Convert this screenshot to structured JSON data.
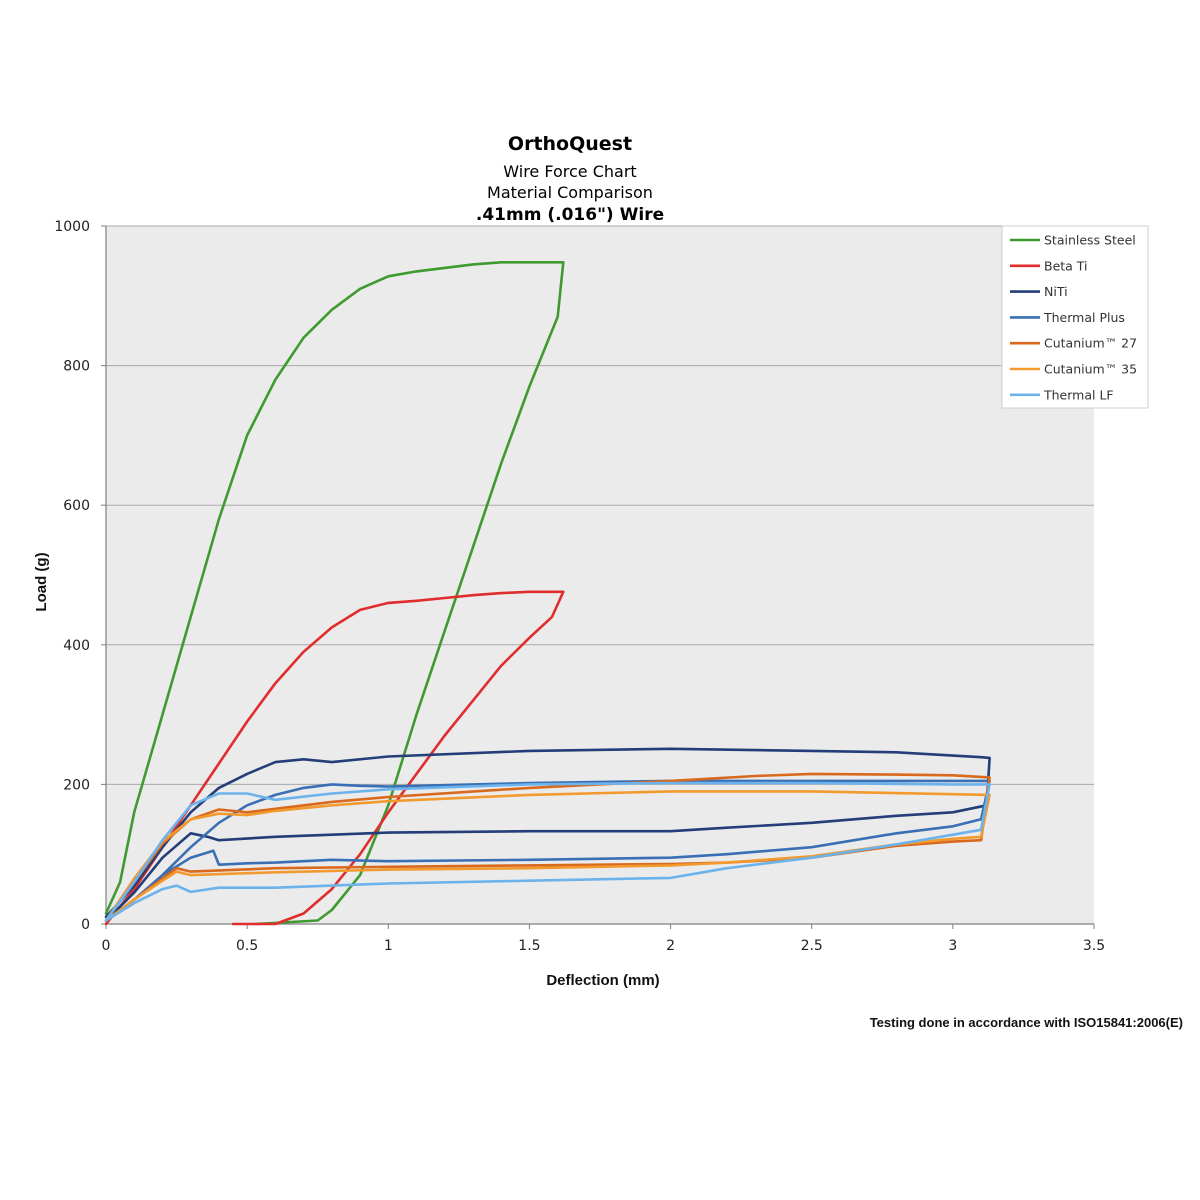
{
  "chart_data": {
    "type": "line",
    "title": "OrthoQuest",
    "subtitle_lines": [
      "Wire Force Chart",
      "Material Comparison",
      ".41mm (.016\") Wire"
    ],
    "xlabel": "Deflection (mm)",
    "ylabel": "Load (g)",
    "xlim": [
      0,
      3.5
    ],
    "ylim": [
      0,
      1000
    ],
    "xticks": [
      0,
      0.5,
      1,
      1.5,
      2,
      2.5,
      3,
      3.5
    ],
    "xtick_labels": [
      "0",
      "0.5",
      "1",
      "1.5",
      "2",
      "2.5",
      "3",
      "3.5"
    ],
    "yticks": [
      0,
      200,
      400,
      600,
      800,
      1000
    ],
    "ytick_labels": [
      "0",
      "200",
      "400",
      "600",
      "800",
      "1000"
    ],
    "grid": "horizontal",
    "legend_position": "top-right",
    "footnote": "Testing done in accordance with ISO15841:2006(E)",
    "series": [
      {
        "name": "Stainless Steel",
        "color": "#3f9a2f",
        "points": [
          [
            0,
            15
          ],
          [
            0.05,
            60
          ],
          [
            0.1,
            160
          ],
          [
            0.2,
            300
          ],
          [
            0.3,
            440
          ],
          [
            0.4,
            580
          ],
          [
            0.5,
            700
          ],
          [
            0.6,
            780
          ],
          [
            0.7,
            840
          ],
          [
            0.8,
            880
          ],
          [
            0.9,
            910
          ],
          [
            1.0,
            928
          ],
          [
            1.1,
            935
          ],
          [
            1.2,
            940
          ],
          [
            1.3,
            945
          ],
          [
            1.4,
            948
          ],
          [
            1.5,
            948
          ],
          [
            1.62,
            948
          ],
          [
            1.6,
            870
          ],
          [
            1.5,
            770
          ],
          [
            1.4,
            660
          ],
          [
            1.3,
            540
          ],
          [
            1.2,
            420
          ],
          [
            1.1,
            300
          ],
          [
            1.0,
            170
          ],
          [
            0.9,
            70
          ],
          [
            0.8,
            20
          ],
          [
            0.75,
            5
          ],
          [
            0.53,
            0
          ]
        ]
      },
      {
        "name": "Beta Ti",
        "color": "#e02d2d",
        "points": [
          [
            0,
            0
          ],
          [
            0.1,
            50
          ],
          [
            0.2,
            110
          ],
          [
            0.3,
            170
          ],
          [
            0.4,
            230
          ],
          [
            0.5,
            290
          ],
          [
            0.6,
            345
          ],
          [
            0.7,
            390
          ],
          [
            0.8,
            425
          ],
          [
            0.9,
            450
          ],
          [
            1.0,
            460
          ],
          [
            1.1,
            463
          ],
          [
            1.2,
            467
          ],
          [
            1.3,
            471
          ],
          [
            1.4,
            474
          ],
          [
            1.5,
            476
          ],
          [
            1.62,
            476
          ],
          [
            1.58,
            440
          ],
          [
            1.5,
            410
          ],
          [
            1.4,
            370
          ],
          [
            1.3,
            320
          ],
          [
            1.2,
            270
          ],
          [
            1.1,
            215
          ],
          [
            1.0,
            160
          ],
          [
            0.9,
            100
          ],
          [
            0.8,
            50
          ],
          [
            0.7,
            15
          ],
          [
            0.6,
            0
          ],
          [
            0.45,
            0
          ]
        ]
      },
      {
        "name": "NiTi",
        "color": "#233e78",
        "points": [
          [
            0,
            10
          ],
          [
            0.1,
            55
          ],
          [
            0.2,
            110
          ],
          [
            0.3,
            160
          ],
          [
            0.4,
            195
          ],
          [
            0.5,
            215
          ],
          [
            0.6,
            232
          ],
          [
            0.7,
            236
          ],
          [
            0.8,
            232
          ],
          [
            1.0,
            240
          ],
          [
            1.5,
            248
          ],
          [
            2.0,
            251
          ],
          [
            2.5,
            248
          ],
          [
            2.8,
            246
          ],
          [
            3.1,
            239
          ],
          [
            3.13,
            238
          ],
          [
            3.12,
            170
          ],
          [
            3.0,
            160
          ],
          [
            2.8,
            155
          ],
          [
            2.5,
            145
          ],
          [
            2.2,
            138
          ],
          [
            2.0,
            133
          ],
          [
            1.5,
            133
          ],
          [
            1.0,
            131
          ],
          [
            0.8,
            128
          ],
          [
            0.6,
            125
          ],
          [
            0.4,
            120
          ],
          [
            0.36,
            125
          ],
          [
            0.3,
            130
          ],
          [
            0.2,
            95
          ],
          [
            0.1,
            45
          ],
          [
            0,
            5
          ]
        ]
      },
      {
        "name": "Thermal Plus",
        "color": "#3a6fb5",
        "points": [
          [
            0,
            5
          ],
          [
            0.1,
            35
          ],
          [
            0.2,
            70
          ],
          [
            0.3,
            110
          ],
          [
            0.4,
            145
          ],
          [
            0.5,
            170
          ],
          [
            0.6,
            185
          ],
          [
            0.7,
            195
          ],
          [
            0.8,
            200
          ],
          [
            0.9,
            198
          ],
          [
            1.0,
            197
          ],
          [
            1.5,
            202
          ],
          [
            2.0,
            205
          ],
          [
            2.5,
            205
          ],
          [
            3.0,
            205
          ],
          [
            3.13,
            205
          ],
          [
            3.1,
            150
          ],
          [
            3.0,
            140
          ],
          [
            2.8,
            130
          ],
          [
            2.5,
            110
          ],
          [
            2.2,
            100
          ],
          [
            2.0,
            95
          ],
          [
            1.5,
            92
          ],
          [
            1.0,
            90
          ],
          [
            0.8,
            92
          ],
          [
            0.6,
            88
          ],
          [
            0.5,
            87
          ],
          [
            0.4,
            85
          ],
          [
            0.38,
            105
          ],
          [
            0.3,
            95
          ],
          [
            0.2,
            70
          ],
          [
            0.1,
            35
          ],
          [
            0,
            5
          ]
        ]
      },
      {
        "name": "Cutanium™ 27",
        "color": "#d9691c",
        "points": [
          [
            0,
            5
          ],
          [
            0.1,
            60
          ],
          [
            0.2,
            115
          ],
          [
            0.3,
            150
          ],
          [
            0.4,
            164
          ],
          [
            0.5,
            160
          ],
          [
            0.6,
            165
          ],
          [
            0.8,
            175
          ],
          [
            1.0,
            182
          ],
          [
            1.5,
            195
          ],
          [
            2.0,
            205
          ],
          [
            2.3,
            212
          ],
          [
            2.5,
            215
          ],
          [
            2.8,
            214
          ],
          [
            3.0,
            213
          ],
          [
            3.13,
            210
          ],
          [
            3.1,
            120
          ],
          [
            3.0,
            118
          ],
          [
            2.8,
            112
          ],
          [
            2.5,
            95
          ],
          [
            2.2,
            88
          ],
          [
            2.0,
            86
          ],
          [
            1.5,
            84
          ],
          [
            1.0,
            82
          ],
          [
            0.6,
            80
          ],
          [
            0.3,
            75
          ],
          [
            0.25,
            80
          ],
          [
            0.2,
            65
          ],
          [
            0.1,
            35
          ],
          [
            0,
            5
          ]
        ]
      },
      {
        "name": "Cutanium™ 35",
        "color": "#f29a2e",
        "points": [
          [
            0,
            5
          ],
          [
            0.1,
            65
          ],
          [
            0.2,
            118
          ],
          [
            0.3,
            150
          ],
          [
            0.4,
            158
          ],
          [
            0.5,
            156
          ],
          [
            0.6,
            162
          ],
          [
            0.8,
            170
          ],
          [
            1.0,
            176
          ],
          [
            1.5,
            185
          ],
          [
            2.0,
            190
          ],
          [
            2.5,
            190
          ],
          [
            3.0,
            186
          ],
          [
            3.13,
            185
          ],
          [
            3.1,
            125
          ],
          [
            3.0,
            122
          ],
          [
            2.8,
            114
          ],
          [
            2.5,
            97
          ],
          [
            2.2,
            88
          ],
          [
            2.0,
            84
          ],
          [
            1.5,
            80
          ],
          [
            1.0,
            78
          ],
          [
            0.6,
            74
          ],
          [
            0.3,
            70
          ],
          [
            0.25,
            75
          ],
          [
            0.2,
            62
          ],
          [
            0.1,
            35
          ],
          [
            0,
            5
          ]
        ]
      },
      {
        "name": "Thermal LF",
        "color": "#6cb3ec",
        "points": [
          [
            0,
            5
          ],
          [
            0.1,
            60
          ],
          [
            0.2,
            120
          ],
          [
            0.3,
            170
          ],
          [
            0.4,
            187
          ],
          [
            0.5,
            187
          ],
          [
            0.6,
            178
          ],
          [
            0.8,
            187
          ],
          [
            1.0,
            193
          ],
          [
            1.5,
            200
          ],
          [
            2.0,
            202
          ],
          [
            2.5,
            202
          ],
          [
            3.0,
            200
          ],
          [
            3.13,
            200
          ],
          [
            3.1,
            135
          ],
          [
            3.0,
            128
          ],
          [
            2.8,
            114
          ],
          [
            2.5,
            95
          ],
          [
            2.2,
            80
          ],
          [
            2.0,
            66
          ],
          [
            1.5,
            62
          ],
          [
            1.0,
            58
          ],
          [
            0.6,
            52
          ],
          [
            0.4,
            52
          ],
          [
            0.3,
            46
          ],
          [
            0.25,
            55
          ],
          [
            0.2,
            50
          ],
          [
            0.1,
            30
          ],
          [
            0,
            5
          ]
        ]
      }
    ]
  }
}
